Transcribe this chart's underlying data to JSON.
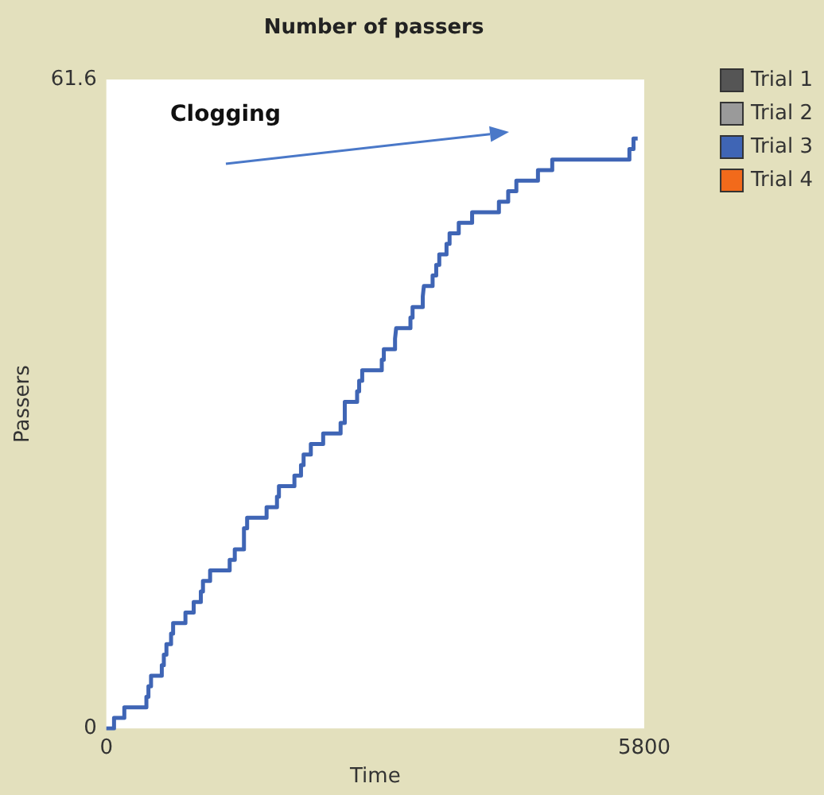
{
  "chart_data": {
    "type": "step",
    "title": "Number of passers",
    "xlabel": "Time",
    "ylabel": "Passers",
    "xlim": [
      0,
      5800
    ],
    "xticks": [
      0,
      5800
    ],
    "ylim": [
      0,
      61.6
    ],
    "yticks": [
      0,
      61.6
    ],
    "grid": false,
    "legend": "top right",
    "marker": "none",
    "annotations": [
      "Clogging"
    ],
    "series": [
      {
        "name": "Trial 1",
        "color": "#555555"
      },
      {
        "name": "Trial 2",
        "color": "#9a9a9a"
      },
      {
        "name": "Trial 3",
        "color": "#3f65b5",
        "x": [
          0,
          83,
          194,
          432,
          454,
          482,
          598,
          620,
          648,
          698,
          720,
          853,
          942,
          1019,
          1042,
          1119,
          1330,
          1385,
          1484,
          1518,
          1728,
          1840,
          1861,
          2028,
          2099,
          2127,
          2205,
          2338,
          2526,
          2571,
          2704,
          2726,
          2759,
          2970,
          2992,
          3113,
          3125,
          3279,
          3302,
          3412,
          3424,
          3518,
          3557,
          3590,
          3668,
          3701,
          3800,
          3944,
          4233,
          4333,
          4421,
          4654,
          4808,
          5640,
          5684,
          5729
        ],
        "values": [
          0,
          1,
          2,
          3,
          4,
          5,
          6,
          7,
          8,
          9,
          10,
          11,
          12,
          13,
          14,
          15,
          16,
          17,
          19,
          20,
          21,
          22,
          23,
          24,
          25,
          26,
          27,
          28,
          29,
          31,
          32,
          33,
          34,
          35,
          36,
          37,
          38,
          39,
          40,
          41,
          42,
          43,
          44,
          45,
          46,
          47,
          48,
          49,
          50,
          51,
          52,
          53,
          54,
          55,
          56,
          56
        ]
      },
      {
        "name": "Trial 4",
        "color": "#f26a1b"
      }
    ]
  }
}
